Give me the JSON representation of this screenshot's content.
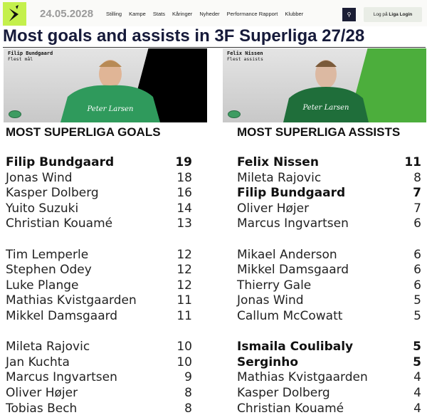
{
  "header": {
    "date": "24.05.2028",
    "nav": [
      "Stilling",
      "Kampe",
      "Stats",
      "Kåringer",
      "Nyheder",
      "Performance Rapport",
      "Klubber"
    ],
    "login_prefix": "Log på",
    "login_brand": "Liga Login",
    "logo_color": "#c4f04c"
  },
  "title": "Most goals and assists in 3F Superliga 27/28",
  "cards": [
    {
      "name": "Filip Bundgaard",
      "sub": "Flest mål",
      "stripe": "#000000"
    },
    {
      "name": "Felix Nissen",
      "sub": "Flest assists",
      "stripe": "#4cae3c"
    }
  ],
  "goals": {
    "heading": "MOST SUPERLIGA GOALS",
    "rows": [
      {
        "name": "Filip Bundgaard",
        "value": "19",
        "bold": true
      },
      {
        "name": "Jonas Wind",
        "value": "18"
      },
      {
        "name": "Kasper Dolberg",
        "value": "16"
      },
      {
        "name": "Yuito Suzuki",
        "value": "14"
      },
      {
        "name": "Christian Kouamé",
        "value": "13"
      },
      {
        "name": "Tim Lemperle",
        "value": "12"
      },
      {
        "name": "Stephen Odey",
        "value": "12"
      },
      {
        "name": "Luke Plange",
        "value": "12"
      },
      {
        "name": "Mathias Kvistgaarden",
        "value": "11"
      },
      {
        "name": "Mikkel Damsgaard",
        "value": "11"
      },
      {
        "name": "Mileta Rajovic",
        "value": "10"
      },
      {
        "name": "Jan Kuchta",
        "value": "10"
      },
      {
        "name": "Marcus Ingvartsen",
        "value": "9"
      },
      {
        "name": "Oliver Højer",
        "value": "8"
      },
      {
        "name": "Tobias Bech",
        "value": "8"
      }
    ]
  },
  "assists": {
    "heading": "MOST SUPERLIGA ASSISTS",
    "rows": [
      {
        "name": "Felix Nissen",
        "value": "11",
        "bold": true
      },
      {
        "name": "Mileta Rajovic",
        "value": "8"
      },
      {
        "name": "Filip Bundgaard",
        "value": "7",
        "bold": true
      },
      {
        "name": "Oliver Højer",
        "value": "7"
      },
      {
        "name": "Marcus Ingvartsen",
        "value": "6"
      },
      {
        "name": "Mikael Anderson",
        "value": "6"
      },
      {
        "name": "Mikkel Damsgaard",
        "value": "6"
      },
      {
        "name": "Thierry Gale",
        "value": "6"
      },
      {
        "name": "Jonas Wind",
        "value": "5"
      },
      {
        "name": "Callum McCowatt",
        "value": "5"
      },
      {
        "name": "Ismaila Coulibaly",
        "value": "5",
        "bold": true
      },
      {
        "name": "Serginho",
        "value": "5",
        "bold": true
      },
      {
        "name": "Mathias Kvistgaarden",
        "value": "4"
      },
      {
        "name": "Kasper Dolberg",
        "value": "4"
      },
      {
        "name": "Christian Kouamé",
        "value": "4"
      }
    ]
  }
}
